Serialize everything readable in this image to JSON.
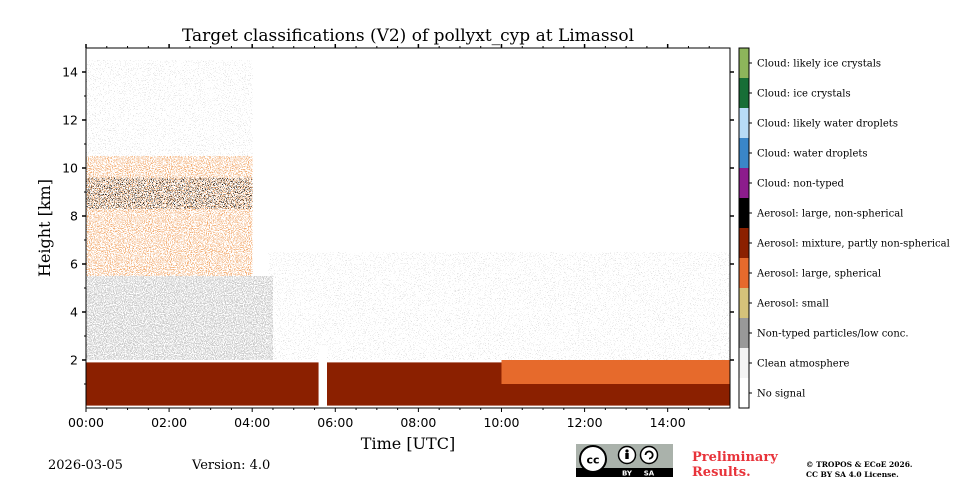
{
  "chart_data": {
    "type": "heatmap",
    "title": "Target classifications (V2) of pollyxt_cyp at Limassol",
    "xlabel": "Time [UTC]",
    "ylabel": "Height [km]",
    "xlim": [
      0,
      15.5
    ],
    "ylim": [
      0,
      15
    ],
    "x_ticks": [
      0,
      2,
      4,
      6,
      8,
      10,
      12,
      14
    ],
    "x_tick_labels": [
      "00:00",
      "02:00",
      "04:00",
      "06:00",
      "08:00",
      "10:00",
      "12:00",
      "14:00"
    ],
    "y_ticks": [
      2,
      4,
      6,
      8,
      10,
      12,
      14
    ],
    "y_tick_labels": [
      "2",
      "4",
      "6",
      "8",
      "10",
      "12",
      "14"
    ],
    "legend_position": "right colorbar",
    "classes": [
      {
        "label": "No signal",
        "color": "#ffffff"
      },
      {
        "label": "Clean atmosphere",
        "color": "#f4f4f4"
      },
      {
        "label": "Non-typed particles/low conc.",
        "color": "#999999"
      },
      {
        "label": "Aerosol: small",
        "color": "#d5c27a"
      },
      {
        "label": "Aerosol: large, spherical",
        "color": "#e66a2c"
      },
      {
        "label": "Aerosol: mixture, partly non-spherical",
        "color": "#8b2000"
      },
      {
        "label": "Aerosol: large, non-spherical",
        "color": "#000000"
      },
      {
        "label": "Cloud: non-typed",
        "color": "#8c1c8c"
      },
      {
        "label": "Cloud: water droplets",
        "color": "#3a86c8"
      },
      {
        "label": "Cloud: likely water droplets",
        "color": "#b8dcf7"
      },
      {
        "label": "Cloud: ice crystals",
        "color": "#176e36"
      },
      {
        "label": "Cloud: likely ice crystals",
        "color": "#8db55b"
      }
    ],
    "regions": [
      {
        "class": "Aerosol: mixture, partly non-spherical",
        "time_start": 0,
        "time_end": 15.5,
        "height_bottom": 0.1,
        "height_top": 1.9
      },
      {
        "class": "Aerosol: large, spherical",
        "time_start": 10,
        "time_end": 15.5,
        "height_bottom": 1.0,
        "height_top": 2.0
      },
      {
        "class": "Non-typed particles/low conc.",
        "time_start": 0,
        "time_end": 4.5,
        "height_bottom": 2.0,
        "height_top": 5.5
      },
      {
        "class": "Aerosol: large, spherical",
        "time_start": 0,
        "time_end": 4.0,
        "height_bottom": 5.5,
        "height_top": 10.5
      },
      {
        "class": "Aerosol: large, non-spherical",
        "time_start": 0,
        "time_end": 4.0,
        "height_bottom": 8.3,
        "height_top": 9.6
      },
      {
        "class": "No signal",
        "time_start": 5.6,
        "time_end": 5.8,
        "height_bottom": 0,
        "height_top": 2.6
      }
    ]
  },
  "footer": {
    "date": "2026-03-05",
    "version": "Version: 4.0",
    "preliminary": [
      "Preliminary",
      "Results."
    ],
    "copyright": [
      "© TROPOS & ECoE 2026.",
      "CC BY SA 4.0 License."
    ],
    "cc_badge": {
      "cc": "cc",
      "by": "BY",
      "sa": "SA"
    }
  }
}
